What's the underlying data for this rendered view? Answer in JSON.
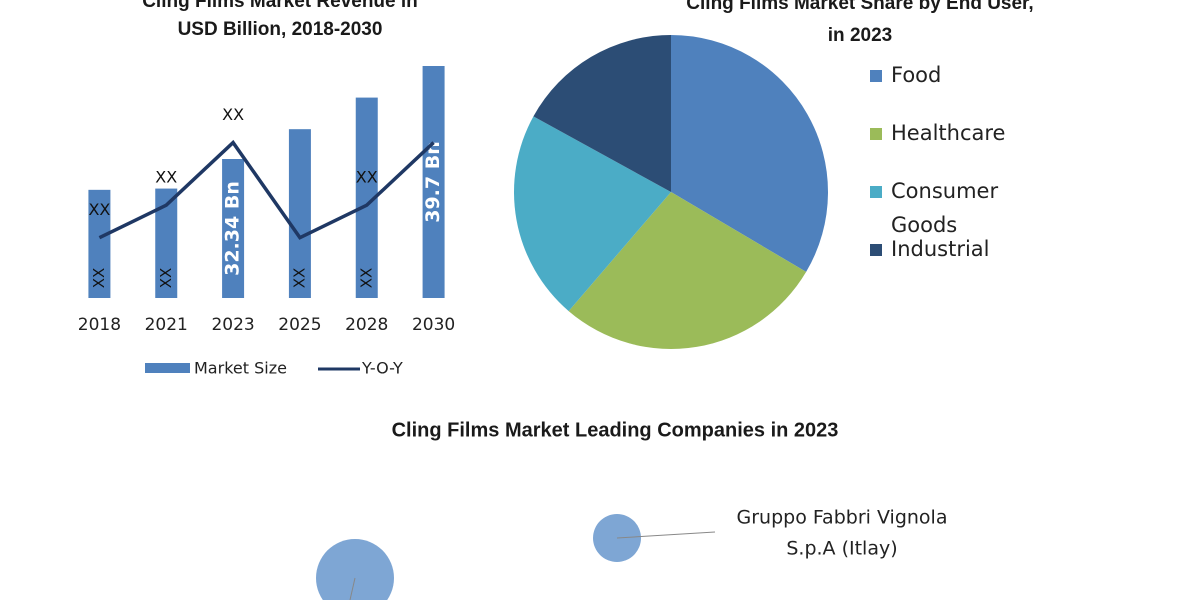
{
  "chart_data": [
    {
      "type": "bar",
      "title": [
        "Cling Films Market Revenue in",
        "USD Billion, 2018-2030"
      ],
      "categories": [
        "2018",
        "2021",
        "2023",
        "2025",
        "2028",
        "2030"
      ],
      "ylim": [
        21.34,
        39.7
      ],
      "y2lim": [
        0,
        100
      ],
      "series": [
        {
          "name": "Market Size",
          "type": "bar",
          "color": "#4f81bd",
          "values": [
            29.9,
            30.0,
            32.34,
            34.7,
            37.2,
            39.7
          ],
          "value_labels": [
            "XX",
            "XX",
            "32.34 Bn",
            "XX",
            "XX",
            "39.7 Bn"
          ]
        },
        {
          "name": "Y-O-Y",
          "type": "line",
          "axis": "y2",
          "color": "#1f3864",
          "values": [
            26,
            40,
            67,
            26,
            40,
            67
          ],
          "value_labels": [
            "XX",
            "XX",
            "XX",
            null,
            "XX",
            null
          ]
        }
      ]
    },
    {
      "type": "pie",
      "title": [
        "Cling Films Market Share by End User,",
        "in 2023"
      ],
      "categories": [
        [
          "Food"
        ],
        [
          "Healthcare"
        ],
        [
          "Consumer",
          "Goods"
        ],
        [
          "Industrial"
        ]
      ],
      "values": [
        33.5,
        27.8,
        21.7,
        17.0
      ],
      "colors": [
        "#4f81bd",
        "#9bbb59",
        "#4bacc6",
        "#2c4d75"
      ]
    }
  ],
  "companies": {
    "title": "Cling Films Market Leading Companies in 2023",
    "items": [
      {
        "label": [
          "Gruppo Fabbri Vignola",
          "S.p.A (Itlay)"
        ]
      }
    ]
  }
}
